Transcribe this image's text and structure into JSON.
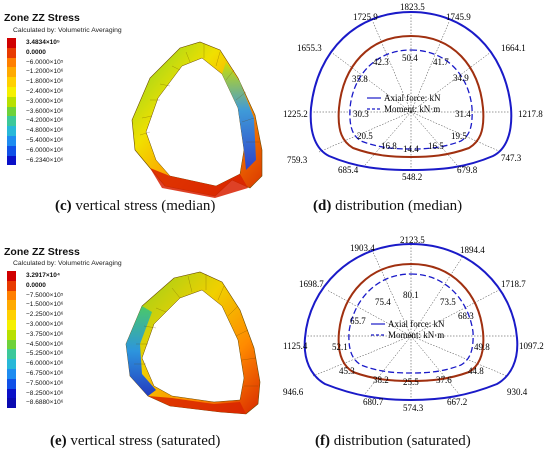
{
  "panels": {
    "c": {
      "legend_title": "Zone ZZ Stress",
      "legend_sub": "Calculated by: Volumetric Averaging",
      "legend_values": [
        "3.4834×10⁵",
        "0.0000",
        "−6.0000×10⁵",
        "−1.2000×10⁶",
        "−1.8000×10⁶",
        "−2.4000×10⁶",
        "−3.0000×10⁶",
        "−3.6000×10⁶",
        "−4.2000×10⁶",
        "−4.8000×10⁶",
        "−5.4000×10⁶",
        "−6.0000×10⁶",
        "−6.2340×10⁶"
      ],
      "legend_colors": [
        "#d00000",
        "#e83a00",
        "#ff7f00",
        "#ffaa00",
        "#ffd000",
        "#f5f000",
        "#b8e000",
        "#6ed23a",
        "#3cc89a",
        "#28b8d8",
        "#1e8cf0",
        "#1050e8",
        "#0a10c8"
      ],
      "caption_letter": "(c)",
      "caption_text": " vertical stress (median)"
    },
    "d": {
      "caption_letter": "(d)",
      "caption_text": " distribution (median)",
      "legend_axial": "Axial force: kN",
      "legend_moment": "Moment: kN·m",
      "axial_labels": [
        "1823.5",
        "1725.9",
        "1745.9",
        "1655.3",
        "1664.1",
        "1225.2",
        "1217.8",
        "759.3",
        "747.3",
        "685.4",
        "679.8",
        "548.2"
      ],
      "moment_labels": [
        "50.4",
        "42.3",
        "41.7",
        "35.8",
        "34.9",
        "30.3",
        "31.4",
        "20.5",
        "19.5",
        "16.8",
        "16.5",
        "14.4"
      ]
    },
    "e": {
      "legend_title": "Zone ZZ Stress",
      "legend_sub": "Calculated by: Volumetric Averaging",
      "legend_values": [
        "3.2917×10⁴",
        "0.0000",
        "−7.5000×10⁵",
        "−1.5000×10⁶",
        "−2.2500×10⁶",
        "−3.0000×10⁶",
        "−3.7500×10⁶",
        "−4.5000×10⁶",
        "−5.2500×10⁶",
        "−6.0000×10⁶",
        "−6.7500×10⁶",
        "−7.5000×10⁶",
        "−8.2500×10⁶",
        "−8.6880×10⁶"
      ],
      "legend_colors": [
        "#d00000",
        "#e83a00",
        "#ff7f00",
        "#ffaa00",
        "#ffd000",
        "#f5f000",
        "#b8e000",
        "#6ed23a",
        "#3cc89a",
        "#28b8d8",
        "#1e8cf0",
        "#1050e8",
        "#0a10c8",
        "#0a0ab0"
      ],
      "caption_letter": "(e)",
      "caption_text": " vertical stress (saturated)"
    },
    "f": {
      "caption_letter": "(f)",
      "caption_text": " distribution (saturated)",
      "legend_axial": "Axial force: kN",
      "legend_moment": "Moment: kN·m",
      "axial_labels": [
        "2123.5",
        "1903.4",
        "1894.4",
        "1698.7",
        "1718.7",
        "1125.4",
        "1097.2",
        "946.6",
        "930.4",
        "680.7",
        "667.2",
        "574.3"
      ],
      "moment_labels": [
        "80.1",
        "75.4",
        "73.5",
        "65.7",
        "68.3",
        "52.1",
        "49.8",
        "45.3",
        "44.8",
        "38.2",
        "37.6",
        "25.5"
      ]
    }
  }
}
